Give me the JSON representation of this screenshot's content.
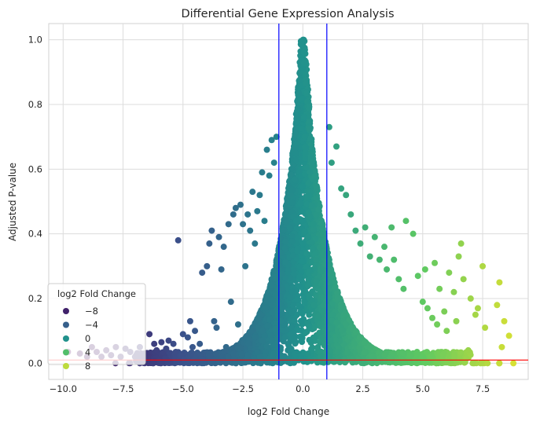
{
  "chart_data": {
    "type": "scatter",
    "title": "Differential Gene Expression Analysis",
    "xlabel": "log2 Fold Change",
    "ylabel": "Adjusted P-value",
    "xlim": [
      -10.6,
      9.4
    ],
    "ylim": [
      -0.05,
      1.05
    ],
    "xticks": [
      -10.0,
      -7.5,
      -5.0,
      -2.5,
      0.0,
      2.5,
      5.0,
      7.5
    ],
    "xtick_labels": [
      "−10.0",
      "−7.5",
      "−5.0",
      "−2.5",
      "0.0",
      "2.5",
      "5.0",
      "7.5"
    ],
    "yticks": [
      0.0,
      0.2,
      0.4,
      0.6,
      0.8,
      1.0
    ],
    "ytick_labels": [
      "0.0",
      "0.2",
      "0.4",
      "0.6",
      "0.8",
      "1.0"
    ],
    "grid": true,
    "colormap": "viridis",
    "color_range": [
      -10,
      10
    ],
    "reference_lines": [
      {
        "orientation": "vertical",
        "x": -1.0,
        "color": "#0000ff"
      },
      {
        "orientation": "vertical",
        "x": 1.0,
        "color": "#0000ff"
      },
      {
        "orientation": "horizontal",
        "y": 0.01,
        "color": "#ff0000"
      }
    ],
    "legend": {
      "title": "log2 Fold Change",
      "position": "lower-left",
      "items": [
        {
          "label": "−8",
          "value": -8
        },
        {
          "label": "−4",
          "value": -4
        },
        {
          "label": "0",
          "value": 0
        },
        {
          "label": "4",
          "value": 4
        },
        {
          "label": "8",
          "value": 8
        }
      ]
    },
    "points": [
      [
        -9.8,
        0.035
      ],
      [
        -9.3,
        0.03
      ],
      [
        -9.0,
        0.02
      ],
      [
        -8.8,
        0.05
      ],
      [
        -8.6,
        0.035
      ],
      [
        -8.4,
        0.02
      ],
      [
        -8.2,
        0.04
      ],
      [
        -8.0,
        0.025
      ],
      [
        -7.8,
        0.05
      ],
      [
        -7.6,
        0.02
      ],
      [
        -7.4,
        0.045
      ],
      [
        -7.2,
        0.035
      ],
      [
        -7.0,
        0.02
      ],
      [
        -6.8,
        0.05
      ],
      [
        -6.6,
        0.03
      ],
      [
        -6.4,
        0.09
      ],
      [
        -6.2,
        0.06
      ],
      [
        -6.1,
        0.04
      ],
      [
        -5.9,
        0.065
      ],
      [
        -5.7,
        0.045
      ],
      [
        -5.6,
        0.07
      ],
      [
        -5.4,
        0.06
      ],
      [
        -5.3,
        0.035
      ],
      [
        -5.2,
        0.38
      ],
      [
        -5.0,
        0.09
      ],
      [
        -4.8,
        0.08
      ],
      [
        -4.7,
        0.13
      ],
      [
        -4.6,
        0.05
      ],
      [
        -4.5,
        0.1
      ],
      [
        -4.3,
        0.06
      ],
      [
        -4.2,
        0.28
      ],
      [
        -4.0,
        0.3
      ],
      [
        -3.9,
        0.37
      ],
      [
        -3.8,
        0.41
      ],
      [
        -3.7,
        0.13
      ],
      [
        -3.6,
        0.11
      ],
      [
        -3.5,
        0.39
      ],
      [
        -3.4,
        0.29
      ],
      [
        -3.3,
        0.36
      ],
      [
        -3.2,
        0.05
      ],
      [
        -3.1,
        0.43
      ],
      [
        -3.0,
        0.19
      ],
      [
        -2.9,
        0.46
      ],
      [
        -2.8,
        0.48
      ],
      [
        -2.7,
        0.12
      ],
      [
        -2.6,
        0.49
      ],
      [
        -2.5,
        0.43
      ],
      [
        -2.4,
        0.3
      ],
      [
        -2.3,
        0.46
      ],
      [
        -2.2,
        0.41
      ],
      [
        -2.1,
        0.53
      ],
      [
        -2.0,
        0.37
      ],
      [
        -1.9,
        0.47
      ],
      [
        -1.8,
        0.52
      ],
      [
        -1.7,
        0.59
      ],
      [
        -1.6,
        0.44
      ],
      [
        -1.5,
        0.66
      ],
      [
        -1.4,
        0.58
      ],
      [
        -1.3,
        0.69
      ],
      [
        -1.2,
        0.62
      ],
      [
        -1.1,
        0.7
      ],
      [
        1.1,
        0.73
      ],
      [
        1.2,
        0.62
      ],
      [
        1.4,
        0.67
      ],
      [
        1.6,
        0.54
      ],
      [
        1.8,
        0.52
      ],
      [
        2.0,
        0.46
      ],
      [
        2.2,
        0.41
      ],
      [
        2.4,
        0.37
      ],
      [
        2.6,
        0.42
      ],
      [
        2.8,
        0.33
      ],
      [
        3.0,
        0.39
      ],
      [
        3.2,
        0.32
      ],
      [
        3.4,
        0.36
      ],
      [
        3.5,
        0.29
      ],
      [
        3.7,
        0.42
      ],
      [
        3.8,
        0.32
      ],
      [
        4.0,
        0.26
      ],
      [
        4.2,
        0.23
      ],
      [
        4.3,
        0.44
      ],
      [
        4.6,
        0.4
      ],
      [
        4.8,
        0.27
      ],
      [
        5.0,
        0.19
      ],
      [
        5.1,
        0.29
      ],
      [
        5.2,
        0.17
      ],
      [
        5.4,
        0.14
      ],
      [
        5.5,
        0.31
      ],
      [
        5.6,
        0.12
      ],
      [
        5.7,
        0.23
      ],
      [
        5.9,
        0.16
      ],
      [
        6.0,
        0.1
      ],
      [
        6.1,
        0.28
      ],
      [
        6.3,
        0.22
      ],
      [
        6.4,
        0.13
      ],
      [
        6.5,
        0.33
      ],
      [
        6.6,
        0.37
      ],
      [
        6.7,
        0.26
      ],
      [
        6.9,
        0.04
      ],
      [
        7.0,
        0.2
      ],
      [
        7.2,
        0.15
      ],
      [
        7.3,
        0.17
      ],
      [
        7.5,
        0.3
      ],
      [
        7.6,
        0.11
      ],
      [
        8.1,
        0.18
      ],
      [
        8.2,
        0.25
      ],
      [
        8.3,
        0.05
      ],
      [
        8.4,
        0.13
      ],
      [
        8.6,
        0.085
      ]
    ]
  }
}
